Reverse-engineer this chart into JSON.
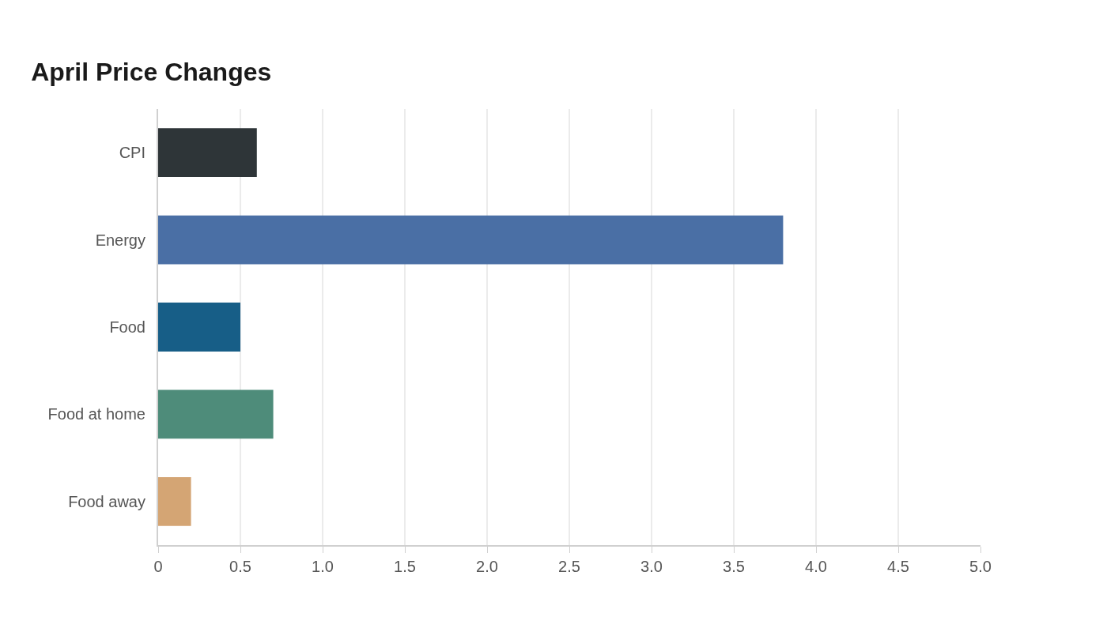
{
  "chart_data": {
    "type": "bar",
    "orientation": "horizontal",
    "title": "April Price Changes",
    "categories": [
      "CPI",
      "Energy",
      "Food",
      "Food at home",
      "Food away"
    ],
    "values": [
      0.6,
      3.8,
      0.5,
      0.7,
      0.2
    ],
    "colors": [
      "#2e3538",
      "#4a6fa5",
      "#175e87",
      "#4e8c7a",
      "#d4a574"
    ],
    "xlim": [
      0,
      5
    ],
    "xticks": [
      0,
      {
        "value": 0.5,
        "label": "0.5"
      },
      {
        "value": 1,
        "label": "1.0"
      },
      {
        "value": 1.5,
        "label": "1.5"
      },
      {
        "value": 2,
        "label": "2.0"
      },
      {
        "value": 2.5,
        "label": "2.5"
      },
      {
        "value": 3,
        "label": "3.0"
      },
      {
        "value": 3.5,
        "label": "3.5"
      },
      {
        "value": 4,
        "label": "4.0"
      },
      {
        "value": 4.5,
        "label": "4.5"
      },
      {
        "value": 5,
        "label": "5.0"
      }
    ],
    "grid": "x",
    "legend": false
  }
}
